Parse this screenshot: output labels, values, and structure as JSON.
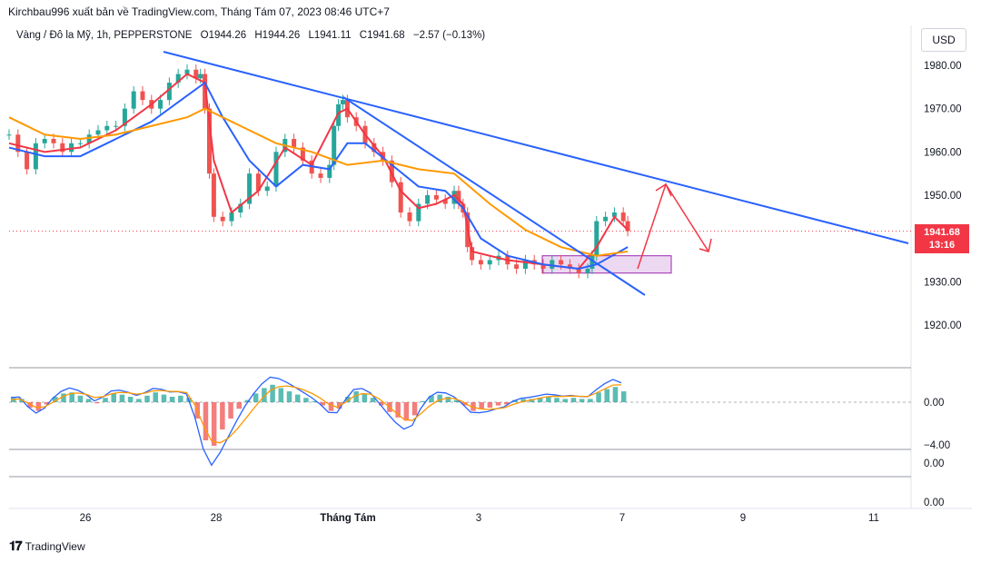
{
  "header": {
    "attribution": "Kirchbau996 xuất bản về TradingView.com, Tháng Tám 07, 2023 08:46 UTC+7"
  },
  "legend": {
    "symbol": "Vàng / Đô la Mỹ, 1h, PEPPERSTONE",
    "open": "O1944.26",
    "high": "H1944.26",
    "low": "L1941.11",
    "close": "C1941.68",
    "change": "−2.57 (−0.13%)"
  },
  "currency_button": "USD",
  "last_price": {
    "value": "1941.68",
    "countdown": "13:16"
  },
  "footer": {
    "brand": "TradingView"
  },
  "colors": {
    "up": "#26a69a",
    "down": "#ef5350",
    "trendline": "#2962ff",
    "ma_fast": "#f23645",
    "ma_mid": "#2962ff",
    "ma_slow": "#ff9800",
    "zone": "#e1bee7",
    "arrow": "#f23645"
  },
  "chart_data": {
    "type": "line",
    "title": "Vàng / Đô la Mỹ, 1h, PEPPERSTONE",
    "y_axis": {
      "labels": [
        "1980.00",
        "1970.00",
        "1960.00",
        "1950.00",
        "1930.00",
        "1920.00"
      ],
      "ylim": [
        1914,
        1988
      ]
    },
    "x_axis": {
      "labels": [
        "26",
        "28",
        "Tháng Tám",
        "3",
        "7",
        "9",
        "11"
      ]
    },
    "oscillator_axis": {
      "labels": [
        "0.00",
        "−4.00"
      ]
    },
    "lower_pane_axis": {
      "labels": [
        "0.00",
        "0.00"
      ]
    },
    "series": [
      {
        "name": "",
        "type": "close",
        "x": [
          0,
          10,
          20,
          30,
          40,
          50,
          60,
          70,
          80,
          90,
          100,
          110,
          120,
          130,
          140,
          150,
          160,
          170,
          180,
          190,
          200,
          210,
          215,
          220,
          225,
          230,
          240,
          250,
          260,
          270,
          280,
          290,
          300,
          310,
          320,
          330,
          340,
          350,
          360,
          365,
          370,
          375,
          380,
          390,
          400,
          410,
          420,
          430,
          440,
          450,
          460,
          470,
          480,
          490,
          500,
          505,
          510,
          515,
          520,
          530,
          540,
          550,
          560,
          570,
          580,
          590,
          600,
          610,
          620,
          630,
          640,
          650,
          655,
          660,
          670,
          680,
          690,
          695
        ],
        "y": [
          1964,
          1960,
          1956,
          1962,
          1963,
          1962,
          1960,
          1962,
          1962,
          1964,
          1965,
          1966,
          1966,
          1970,
          1974,
          1972,
          1970,
          1972,
          1976,
          1978,
          1979,
          1977,
          1978,
          1970,
          1955,
          1945,
          1944,
          1946,
          1948,
          1955,
          1951,
          1952,
          1960,
          1963,
          1961,
          1958,
          1955,
          1954,
          1957,
          1966,
          1971,
          1972,
          1968,
          1966,
          1962,
          1960,
          1958,
          1953,
          1946,
          1944,
          1948,
          1950,
          1949,
          1948,
          1951,
          1948,
          1946,
          1938,
          1935,
          1934,
          1935,
          1936,
          1934,
          1933,
          1935,
          1934,
          1933,
          1935,
          1934,
          1933,
          1932,
          1933,
          1936,
          1944,
          1945,
          1946,
          1944,
          1941.68
        ]
      },
      {
        "name": "",
        "type": "ma_fast",
        "x": [
          0,
          40,
          80,
          120,
          160,
          200,
          220,
          230,
          250,
          280,
          310,
          340,
          370,
          380,
          400,
          420,
          440,
          460,
          480,
          500,
          510,
          520,
          560,
          600,
          640,
          660,
          680,
          695
        ],
        "y": [
          1962,
          1960,
          1961,
          1965,
          1971,
          1978,
          1976,
          1958,
          1946,
          1951,
          1961,
          1957,
          1969,
          1970,
          1964,
          1959,
          1951,
          1947,
          1948,
          1950,
          1948,
          1937,
          1935,
          1934,
          1933,
          1938,
          1945,
          1942
        ]
      },
      {
        "name": "",
        "type": "ma_mid",
        "x": [
          0,
          40,
          80,
          120,
          160,
          200,
          220,
          240,
          270,
          300,
          330,
          360,
          380,
          400,
          430,
          460,
          490,
          510,
          530,
          560,
          600,
          640,
          660,
          695
        ],
        "y": [
          1961,
          1959,
          1959,
          1963,
          1967,
          1973,
          1976,
          1968,
          1958,
          1952,
          1957,
          1956,
          1962,
          1962,
          1957,
          1952,
          1951,
          1947,
          1940,
          1936,
          1934,
          1933,
          1934,
          1938
        ]
      },
      {
        "name": "",
        "type": "ma_slow",
        "x": [
          0,
          40,
          80,
          120,
          160,
          200,
          220,
          260,
          300,
          340,
          380,
          420,
          460,
          500,
          540,
          580,
          620,
          660,
          695
        ],
        "y": [
          1968,
          1964,
          1963,
          1964,
          1966,
          1968,
          1970,
          1966,
          1962,
          1960,
          1957,
          1958,
          1956,
          1955,
          1948,
          1942,
          1938,
          1936,
          1937
        ]
      }
    ],
    "oscillator_histogram": [
      0.4,
      0.3,
      -0.5,
      -0.8,
      -0.2,
      0.5,
      0.8,
      0.9,
      0.6,
      0.3,
      -0.1,
      0.4,
      0.8,
      0.7,
      0.5,
      0.3,
      0.6,
      0.9,
      0.7,
      0.5,
      0.6,
      0.4,
      -1.5,
      -3.5,
      -4,
      -2.5,
      -1.5,
      -0.6,
      0.2,
      0.8,
      1.3,
      1.6,
      1.3,
      1.0,
      0.7,
      0.4,
      0.1,
      -0.3,
      -0.8,
      -0.6,
      0.5,
      1.0,
      0.8,
      0.4,
      -0.3,
      -0.9,
      -1.4,
      -1.7,
      -1.2,
      0.1,
      0.6,
      0.7,
      0.5,
      0.2,
      -0.3,
      -0.8,
      -0.6,
      -0.5,
      -0.3,
      -0.2,
      0.2,
      0.3,
      0.3,
      0.4,
      0.5,
      0.4,
      0.3,
      0.4,
      0.3,
      0.3,
      0.9,
      1.2,
      1.4,
      1.0
    ]
  }
}
